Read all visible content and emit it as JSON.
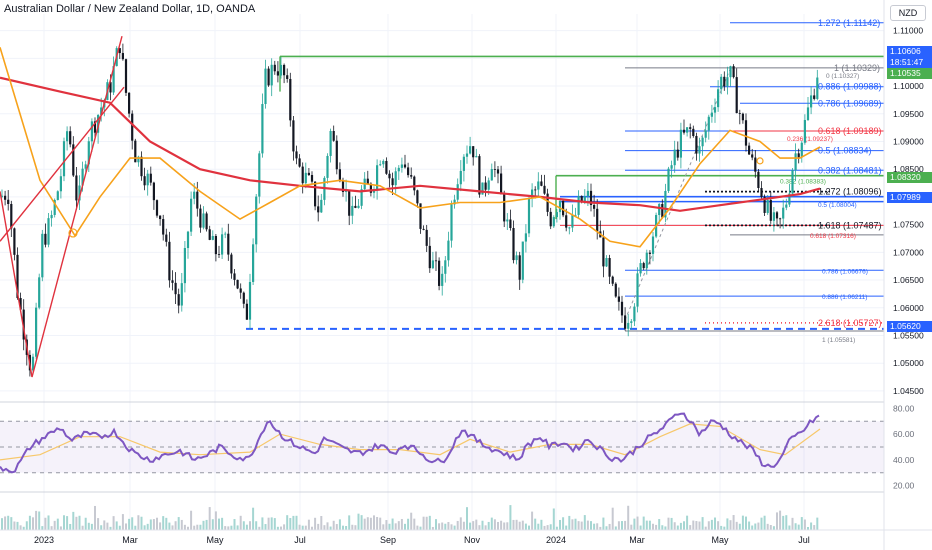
{
  "header": {
    "title": "Australian Dollar / New Zealand Dollar, 1D, OANDA",
    "currency": "NZD"
  },
  "price_axis": {
    "ticks": [
      "1.11000",
      "1.10500",
      "1.10000",
      "1.09500",
      "1.09000",
      "1.08500",
      "1.08000",
      "1.07500",
      "1.07000",
      "1.06500",
      "1.06000",
      "1.05500",
      "1.05000",
      "1.04500"
    ]
  },
  "rsi_axis": {
    "ticks": [
      "80.00",
      "60.00",
      "40.00",
      "20.00"
    ]
  },
  "time_axis": {
    "labels": [
      "2023",
      "Mar",
      "May",
      "Jul",
      "Sep",
      "Nov",
      "2024",
      "Mar",
      "May",
      "Jul"
    ]
  },
  "price_tags": [
    {
      "text": "1.10606",
      "bg": "#2962ff"
    },
    {
      "text": "18:51:47",
      "bg": "#2962ff"
    },
    {
      "text": "1.10535",
      "bg": "#4caf50"
    },
    {
      "text": "1.08320",
      "bg": "#4caf50"
    },
    {
      "text": "1.07989",
      "bg": "#2962ff"
    },
    {
      "text": "1.05620",
      "bg": "#2962ff"
    }
  ],
  "fib_labels": [
    {
      "text": "1.272 (1.11142)",
      "color": "#2962ff",
      "size": "big"
    },
    {
      "text": "1 (1.10329)",
      "color": "#787b86",
      "size": "big"
    },
    {
      "text": "0 (1.10327)",
      "color": "#787b86",
      "size": "small"
    },
    {
      "text": "0.886 (1.09988)",
      "color": "#2962ff",
      "size": "big"
    },
    {
      "text": "0.786 (1.09689)",
      "color": "#2962ff",
      "size": "big"
    },
    {
      "text": "0.618 (1.09189)",
      "color": "#f23645",
      "size": "big"
    },
    {
      "text": "0.236 (1.09237)",
      "color": "#f23645",
      "size": "small"
    },
    {
      "text": "0.5 (1.08834)",
      "color": "#2962ff",
      "size": "big"
    },
    {
      "text": "0.382 (1.08481)",
      "color": "#2962ff",
      "size": "big"
    },
    {
      "text": "0.382 (1.08383)",
      "color": "#4caf50",
      "size": "small"
    },
    {
      "text": "1.272 (1.08096)",
      "color": "#131722",
      "size": "big"
    },
    {
      "text": "0.5 (1.08004)",
      "color": "#2962ff",
      "size": "small"
    },
    {
      "text": "1.618 (1.07487)",
      "color": "#131722",
      "size": "big"
    },
    {
      "text": "0.618 (1.07316)",
      "color": "#f23645",
      "size": "small"
    },
    {
      "text": "0.786 (1.06676)",
      "color": "#2962ff",
      "size": "small"
    },
    {
      "text": "0.886 (1.06211)",
      "color": "#2962ff",
      "size": "small"
    },
    {
      "text": "2.618 (1.05727)",
      "color": "#f23645",
      "size": "big"
    },
    {
      "text": "1 (1.05581)",
      "color": "#787b86",
      "size": "small"
    }
  ],
  "colors": {
    "up": "#26a69a",
    "down": "#131722",
    "ema_slow": "#e0323e",
    "ema_fast": "#f7a21b",
    "rsi": "#7e57c2",
    "rsi_ma": "#f7c86b",
    "fib_blue": "#2962ff",
    "fib_red": "#f23645",
    "fib_green": "#4caf50"
  },
  "chart_data": {
    "type": "candlestick",
    "title": "Australian Dollar / New Zealand Dollar, 1D, OANDA",
    "ylim": [
      1.043,
      1.113
    ],
    "rsi_ylim": [
      15,
      85
    ],
    "rsi_band": [
      30,
      70
    ],
    "price_path": [
      [
        0,
        1.08
      ],
      [
        8,
        1.081
      ],
      [
        18,
        1.062
      ],
      [
        32,
        1.048
      ],
      [
        42,
        1.072
      ],
      [
        50,
        1.075
      ],
      [
        60,
        1.083
      ],
      [
        68,
        1.093
      ],
      [
        78,
        1.078
      ],
      [
        88,
        1.091
      ],
      [
        98,
        1.095
      ],
      [
        110,
        1.1
      ],
      [
        120,
        1.108
      ],
      [
        125,
        1.1
      ],
      [
        135,
        1.088
      ],
      [
        148,
        1.083
      ],
      [
        160,
        1.077
      ],
      [
        170,
        1.066
      ],
      [
        180,
        1.06
      ],
      [
        192,
        1.081
      ],
      [
        205,
        1.074
      ],
      [
        215,
        1.07
      ],
      [
        225,
        1.072
      ],
      [
        238,
        1.064
      ],
      [
        246,
        1.057
      ],
      [
        255,
        1.078
      ],
      [
        265,
        1.101
      ],
      [
        276,
        1.104
      ],
      [
        286,
        1.101
      ],
      [
        296,
        1.086
      ],
      [
        310,
        1.082
      ],
      [
        320,
        1.077
      ],
      [
        330,
        1.092
      ],
      [
        340,
        1.085
      ],
      [
        352,
        1.076
      ],
      [
        362,
        1.081
      ],
      [
        372,
        1.082
      ],
      [
        382,
        1.089
      ],
      [
        392,
        1.082
      ],
      [
        402,
        1.087
      ],
      [
        412,
        1.082
      ],
      [
        422,
        1.074
      ],
      [
        432,
        1.068
      ],
      [
        442,
        1.064
      ],
      [
        452,
        1.079
      ],
      [
        462,
        1.088
      ],
      [
        472,
        1.09
      ],
      [
        482,
        1.08
      ],
      [
        492,
        1.087
      ],
      [
        502,
        1.079
      ],
      [
        512,
        1.071
      ],
      [
        520,
        1.066
      ],
      [
        530,
        1.08
      ],
      [
        540,
        1.082
      ],
      [
        550,
        1.076
      ],
      [
        560,
        1.08
      ],
      [
        570,
        1.074
      ],
      [
        580,
        1.079
      ],
      [
        590,
        1.08
      ],
      [
        600,
        1.072
      ],
      [
        610,
        1.064
      ],
      [
        617,
        1.06
      ],
      [
        625,
        1.058
      ],
      [
        632,
        1.06
      ],
      [
        642,
        1.068
      ],
      [
        652,
        1.073
      ],
      [
        662,
        1.078
      ],
      [
        672,
        1.086
      ],
      [
        680,
        1.09
      ],
      [
        690,
        1.092
      ],
      [
        700,
        1.088
      ],
      [
        710,
        1.095
      ],
      [
        720,
        1.101
      ],
      [
        730,
        1.102
      ],
      [
        740,
        1.095
      ],
      [
        750,
        1.087
      ],
      [
        760,
        1.082
      ],
      [
        770,
        1.076
      ],
      [
        778,
        1.074
      ],
      [
        786,
        1.079
      ],
      [
        794,
        1.087
      ],
      [
        802,
        1.091
      ],
      [
        810,
        1.097
      ],
      [
        816,
        1.101
      ],
      [
        820,
        1.106
      ]
    ],
    "ema_slow_path": [
      [
        0,
        1.1015
      ],
      [
        60,
        1.099
      ],
      [
        110,
        1.097
      ],
      [
        150,
        1.09
      ],
      [
        200,
        1.085
      ],
      [
        250,
        1.083
      ],
      [
        300,
        1.082
      ],
      [
        360,
        1.081
      ],
      [
        420,
        1.082
      ],
      [
        480,
        1.081
      ],
      [
        540,
        1.08
      ],
      [
        590,
        1.079
      ],
      [
        640,
        1.0785
      ],
      [
        680,
        1.0775
      ],
      [
        720,
        1.0785
      ],
      [
        760,
        1.0795
      ],
      [
        800,
        1.0805
      ],
      [
        820,
        1.0815
      ]
    ],
    "ema_fast_path": [
      [
        0,
        1.107
      ],
      [
        40,
        1.083
      ],
      [
        75,
        1.073
      ],
      [
        100,
        1.08
      ],
      [
        130,
        1.087
      ],
      [
        160,
        1.087
      ],
      [
        200,
        1.081
      ],
      [
        240,
        1.076
      ],
      [
        270,
        1.079
      ],
      [
        300,
        1.082
      ],
      [
        340,
        1.083
      ],
      [
        380,
        1.082
      ],
      [
        420,
        1.078
      ],
      [
        460,
        1.079
      ],
      [
        500,
        1.079
      ],
      [
        540,
        1.08
      ],
      [
        580,
        1.076
      ],
      [
        610,
        1.072
      ],
      [
        640,
        1.071
      ],
      [
        670,
        1.078
      ],
      [
        700,
        1.086
      ],
      [
        730,
        1.092
      ],
      [
        760,
        1.09
      ],
      [
        780,
        1.087
      ],
      [
        800,
        1.087
      ],
      [
        820,
        1.089
      ]
    ],
    "rsi_path": [
      [
        0,
        34
      ],
      [
        15,
        32
      ],
      [
        30,
        50
      ],
      [
        45,
        58
      ],
      [
        60,
        65
      ],
      [
        72,
        55
      ],
      [
        85,
        60
      ],
      [
        100,
        58
      ],
      [
        115,
        62
      ],
      [
        125,
        52
      ],
      [
        135,
        45
      ],
      [
        150,
        40
      ],
      [
        165,
        44
      ],
      [
        180,
        47
      ],
      [
        195,
        40
      ],
      [
        210,
        45
      ],
      [
        220,
        50
      ],
      [
        235,
        43
      ],
      [
        248,
        40
      ],
      [
        258,
        55
      ],
      [
        268,
        72
      ],
      [
        278,
        62
      ],
      [
        288,
        55
      ],
      [
        300,
        50
      ],
      [
        315,
        45
      ],
      [
        325,
        57
      ],
      [
        335,
        52
      ],
      [
        345,
        48
      ],
      [
        358,
        45
      ],
      [
        370,
        48
      ],
      [
        380,
        52
      ],
      [
        392,
        45
      ],
      [
        405,
        52
      ],
      [
        418,
        47
      ],
      [
        430,
        40
      ],
      [
        442,
        38
      ],
      [
        452,
        50
      ],
      [
        462,
        64
      ],
      [
        472,
        58
      ],
      [
        482,
        52
      ],
      [
        495,
        48
      ],
      [
        508,
        44
      ],
      [
        518,
        40
      ],
      [
        528,
        52
      ],
      [
        540,
        58
      ],
      [
        550,
        50
      ],
      [
        562,
        54
      ],
      [
        575,
        48
      ],
      [
        588,
        56
      ],
      [
        598,
        50
      ],
      [
        610,
        42
      ],
      [
        622,
        40
      ],
      [
        632,
        46
      ],
      [
        645,
        55
      ],
      [
        658,
        62
      ],
      [
        670,
        70
      ],
      [
        680,
        78
      ],
      [
        688,
        73
      ],
      [
        700,
        60
      ],
      [
        712,
        70
      ],
      [
        720,
        68
      ],
      [
        730,
        60
      ],
      [
        742,
        53
      ],
      [
        752,
        48
      ],
      [
        762,
        38
      ],
      [
        770,
        34
      ],
      [
        780,
        40
      ],
      [
        790,
        55
      ],
      [
        802,
        62
      ],
      [
        812,
        70
      ],
      [
        820,
        75
      ]
    ],
    "rsi_ma_path": [
      [
        0,
        40
      ],
      [
        40,
        44
      ],
      [
        80,
        58
      ],
      [
        120,
        58
      ],
      [
        160,
        46
      ],
      [
        200,
        44
      ],
      [
        250,
        46
      ],
      [
        280,
        60
      ],
      [
        320,
        52
      ],
      [
        360,
        48
      ],
      [
        400,
        48
      ],
      [
        440,
        44
      ],
      [
        470,
        56
      ],
      [
        510,
        46
      ],
      [
        550,
        52
      ],
      [
        590,
        52
      ],
      [
        625,
        44
      ],
      [
        660,
        58
      ],
      [
        690,
        68
      ],
      [
        720,
        66
      ],
      [
        760,
        48
      ],
      [
        785,
        44
      ],
      [
        820,
        64
      ]
    ],
    "annotations": [
      "1.272 (1.11142)",
      "1 (1.10329)",
      "0.886 (1.09988)",
      "0.786 (1.09689)",
      "0.618 (1.09189)",
      "0.5 (1.08834)",
      "0.382 (1.08481)",
      "1.272 (1.08096)",
      "1.618 (1.07487)",
      "0.786 (1.06676)",
      "0.886 (1.06211)",
      "2.618 (1.05727)"
    ]
  }
}
